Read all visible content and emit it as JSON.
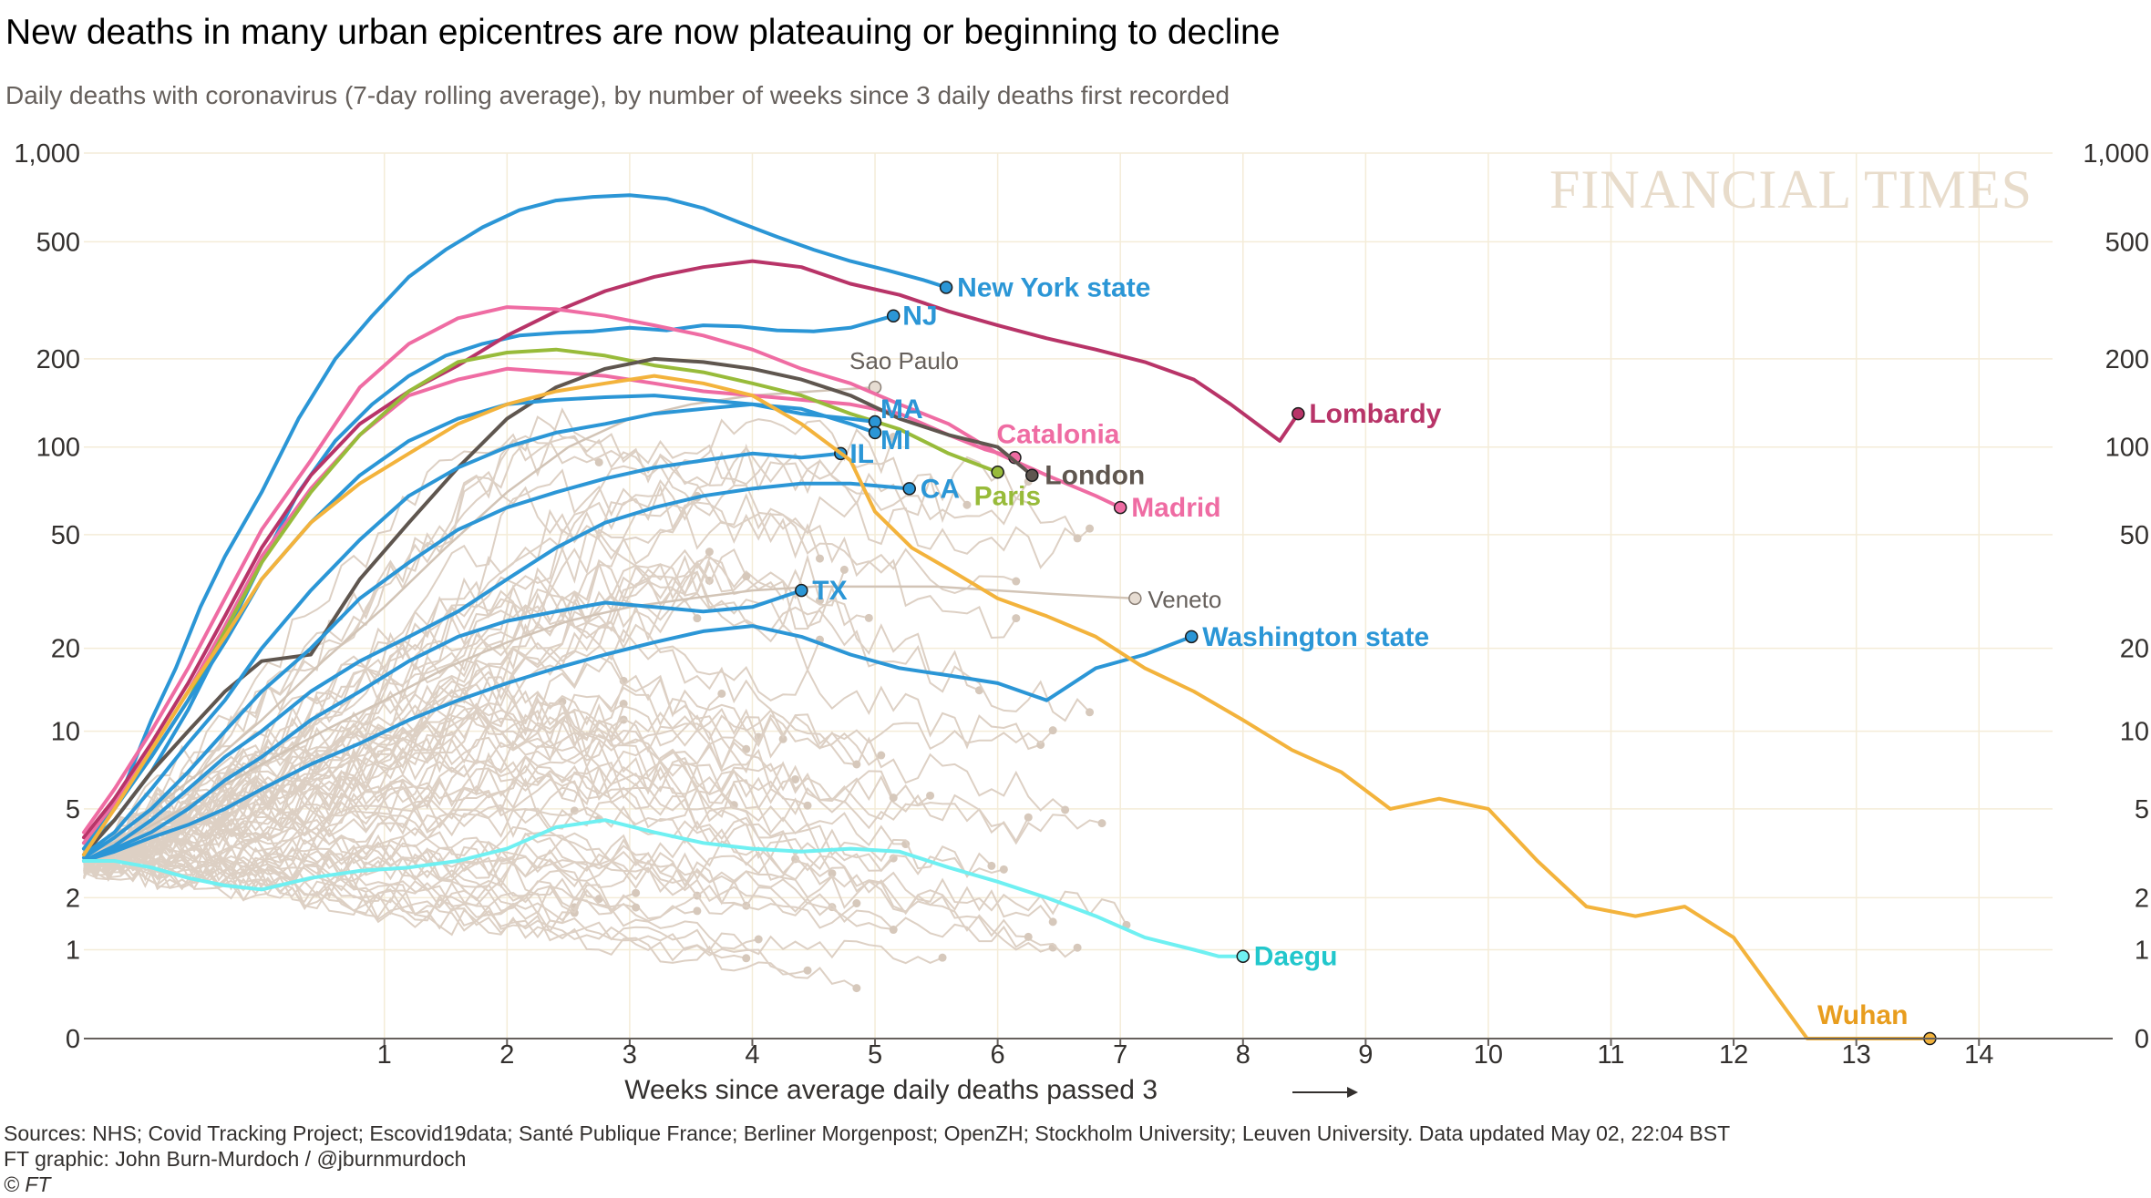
{
  "title": "New deaths in many urban epicentres are now plateauing or beginning to decline",
  "subtitle": "Daily deaths with coronavirus (7-day rolling average), by number of weeks since 3 daily deaths first recorded",
  "watermark": "FINANCIAL TIMES",
  "sources": "Sources: NHS; Covid Tracking Project; Escovid19data; Santé Publique France; Berliner Morgenpost; OpenZH; Stockholm University; Leuven University. Data updated May 02, 22:04 BST",
  "credit": "FT graphic: John Burn-Murdoch / @jburnmurdoch",
  "copyright": "© FT",
  "chart_data": {
    "type": "line",
    "title": "New deaths in many urban epicentres are now plateauing or beginning to decline",
    "subtitle": "Daily deaths with coronavirus (7-day rolling average), by number of weeks since 3 daily deaths first recorded",
    "xlabel": "Weeks since average daily deaths passed 3",
    "ylabel": "",
    "xlim": [
      -1.45,
      14.6
    ],
    "y_scale": "symlog",
    "ylim": [
      0,
      1000
    ],
    "grid": true,
    "legend": "none (direct labels)",
    "x_ticks": [
      1,
      2,
      3,
      4,
      5,
      6,
      7,
      8,
      9,
      10,
      11,
      12,
      13,
      14
    ],
    "x_tick_labels": [
      "1",
      "2",
      "3",
      "4",
      "5",
      "6",
      "7",
      "8",
      "9",
      "10",
      "11",
      "12",
      "13",
      "14"
    ],
    "y_ticks": [
      0,
      1,
      2,
      5,
      10,
      20,
      50,
      100,
      200,
      500,
      1000
    ],
    "y_tick_labels": [
      "0",
      "1",
      "2",
      "5",
      "10",
      "20",
      "50",
      "100",
      "200",
      "500",
      "1,000"
    ],
    "colors": {
      "us": "#2b96d6",
      "lombardy": "#b83468",
      "madrid": "#ef6ca3",
      "paris": "#98bb3a",
      "london": "#5f564f",
      "wuhan": "#f3b33c",
      "daegu": "#6ff0f2",
      "background_lines": "#ddd0c4",
      "background_dots": "#d6c8bb",
      "grid": "#f4ecd8"
    },
    "series": [
      {
        "name": "New York state",
        "color": "#2b96d6",
        "x": [
          -1.45,
          -1.3,
          -1.1,
          -0.9,
          -0.7,
          -0.5,
          -0.3,
          0,
          0.3,
          0.6,
          0.9,
          1.2,
          1.5,
          1.8,
          2.1,
          2.4,
          2.7,
          3.0,
          3.3,
          3.6,
          3.9,
          4.2,
          4.5,
          4.8,
          5.1,
          5.4,
          5.58
        ],
        "y": [
          3.6,
          4.5,
          6.5,
          11,
          17,
          28,
          42,
          70,
          125,
          200,
          280,
          380,
          470,
          560,
          640,
          690,
          710,
          720,
          700,
          650,
          580,
          520,
          470,
          430,
          400,
          370,
          350
        ]
      },
      {
        "name": "NJ",
        "color": "#2b96d6",
        "x": [
          -1.45,
          -1.2,
          -0.9,
          -0.6,
          -0.3,
          0,
          0.3,
          0.6,
          0.9,
          1.2,
          1.5,
          1.8,
          2.1,
          2.4,
          2.7,
          3.0,
          3.3,
          3.6,
          3.9,
          4.2,
          4.5,
          4.8,
          5.15
        ],
        "y": [
          3.4,
          4.5,
          7,
          12,
          22,
          40,
          70,
          105,
          140,
          175,
          205,
          225,
          240,
          245,
          248,
          255,
          250,
          260,
          258,
          250,
          248,
          255,
          280
        ]
      },
      {
        "name": "Lombardy",
        "color": "#b83468",
        "x": [
          -1.45,
          -1.2,
          -0.9,
          -0.6,
          -0.3,
          0,
          0.4,
          0.8,
          1.2,
          1.6,
          2.0,
          2.4,
          2.8,
          3.2,
          3.6,
          4.0,
          4.4,
          4.8,
          5.2,
          5.6,
          6.0,
          6.4,
          6.8,
          7.2,
          7.6,
          7.9,
          8.3,
          8.45
        ],
        "y": [
          3.8,
          5.5,
          9,
          15,
          26,
          45,
          80,
          120,
          155,
          190,
          240,
          290,
          340,
          380,
          410,
          430,
          410,
          360,
          330,
          290,
          260,
          235,
          215,
          195,
          170,
          140,
          105,
          130
        ]
      },
      {
        "name": "Madrid",
        "color": "#ef6ca3",
        "x": [
          -1.45,
          -1.2,
          -0.9,
          -0.6,
          -0.3,
          0,
          0.4,
          0.8,
          1.2,
          1.6,
          2.0,
          2.4,
          2.8,
          3.2,
          3.6,
          4.0,
          4.4,
          4.8,
          5.2,
          5.6,
          6.0,
          6.4,
          6.8,
          7.0
        ],
        "y": [
          4,
          6,
          10,
          17,
          30,
          52,
          90,
          160,
          225,
          275,
          300,
          295,
          280,
          260,
          240,
          215,
          185,
          165,
          140,
          120,
          95,
          80,
          68,
          62
        ]
      },
      {
        "name": "Catalonia",
        "color": "#ef6ca3",
        "x": [
          -1.45,
          -1.2,
          -0.9,
          -0.6,
          -0.3,
          0,
          0.4,
          0.8,
          1.2,
          1.6,
          2.0,
          2.4,
          2.8,
          3.2,
          3.6,
          4.0,
          4.4,
          4.8,
          5.2,
          5.6,
          5.9,
          6.14
        ],
        "y": [
          3.6,
          5.2,
          8.5,
          14,
          24,
          42,
          72,
          110,
          150,
          170,
          185,
          180,
          175,
          165,
          155,
          150,
          145,
          140,
          130,
          110,
          98,
          92
        ]
      },
      {
        "name": "Paris",
        "color": "#98bb3a",
        "x": [
          -1.45,
          -1.2,
          -0.9,
          -0.6,
          -0.3,
          0,
          0.4,
          0.8,
          1.2,
          1.6,
          2.0,
          2.4,
          2.8,
          3.2,
          3.6,
          4.0,
          4.4,
          4.8,
          5.2,
          5.6,
          6.0
        ],
        "y": [
          3.4,
          5,
          8,
          13,
          23,
          40,
          70,
          110,
          155,
          195,
          210,
          215,
          205,
          190,
          180,
          165,
          150,
          130,
          115,
          95,
          82
        ]
      },
      {
        "name": "London",
        "color": "#5f564f",
        "x": [
          -1.45,
          -1.2,
          -0.9,
          -0.6,
          -0.3,
          0,
          0.4,
          0.8,
          1.2,
          1.6,
          2.0,
          2.4,
          2.8,
          3.2,
          3.6,
          4.0,
          4.4,
          4.8,
          5.2,
          5.6,
          6.0,
          6.28
        ],
        "y": [
          3.2,
          4.5,
          7,
          10,
          14,
          18,
          19,
          35,
          55,
          85,
          125,
          160,
          185,
          200,
          195,
          185,
          170,
          150,
          125,
          110,
          100,
          80
        ]
      },
      {
        "name": "Sao Paulo",
        "color": "#d6c8bb",
        "x": [
          -1.45,
          -1.0,
          -0.5,
          0,
          0.5,
          1.0,
          1.5,
          2.0,
          2.5,
          3.0,
          3.5,
          4.0,
          4.5,
          5.0
        ],
        "y": [
          3.3,
          4.5,
          7,
          11,
          18,
          28,
          45,
          70,
          100,
          125,
          140,
          150,
          155,
          160
        ]
      },
      {
        "name": "MA",
        "color": "#2b96d6",
        "x": [
          -1.45,
          -1.2,
          -0.9,
          -0.6,
          -0.3,
          0,
          0.4,
          0.8,
          1.2,
          1.6,
          2.0,
          2.4,
          2.8,
          3.2,
          3.6,
          4.0,
          4.4,
          4.8,
          5.0
        ],
        "y": [
          3.2,
          4,
          6,
          9,
          13,
          20,
          32,
          48,
          68,
          85,
          100,
          112,
          120,
          130,
          135,
          140,
          130,
          125,
          122
        ]
      },
      {
        "name": "MI",
        "color": "#2b96d6",
        "x": [
          -1.45,
          -1.2,
          -0.9,
          -0.6,
          -0.3,
          0,
          0.4,
          0.8,
          1.2,
          1.6,
          2.0,
          2.4,
          2.8,
          3.2,
          3.6,
          4.0,
          4.4,
          4.8,
          5.0
        ],
        "y": [
          3.4,
          5,
          8,
          13,
          21,
          35,
          55,
          80,
          105,
          125,
          140,
          145,
          148,
          150,
          145,
          140,
          135,
          120,
          112
        ]
      },
      {
        "name": "IL",
        "color": "#2b96d6",
        "x": [
          -1.45,
          -1.2,
          -0.9,
          -0.6,
          -0.3,
          0,
          0.4,
          0.8,
          1.2,
          1.6,
          2.0,
          2.4,
          2.8,
          3.2,
          3.6,
          4.0,
          4.4,
          4.72
        ],
        "y": [
          3.1,
          3.8,
          5,
          7,
          10,
          14,
          20,
          30,
          40,
          52,
          62,
          70,
          78,
          85,
          90,
          95,
          92,
          95
        ]
      },
      {
        "name": "CA",
        "color": "#2b96d6",
        "x": [
          -1.45,
          -1.2,
          -0.9,
          -0.6,
          -0.3,
          0,
          0.4,
          0.8,
          1.2,
          1.6,
          2.0,
          2.4,
          2.8,
          3.2,
          3.6,
          4.0,
          4.4,
          4.8,
          5.28
        ],
        "y": [
          3,
          3.5,
          4.5,
          6,
          8,
          10,
          14,
          18,
          22,
          27,
          35,
          45,
          55,
          62,
          68,
          72,
          75,
          75,
          72
        ]
      },
      {
        "name": "TX",
        "color": "#2b96d6",
        "x": [
          -1.45,
          -1.2,
          -0.9,
          -0.6,
          -0.3,
          0,
          0.4,
          0.8,
          1.2,
          1.6,
          2.0,
          2.4,
          2.8,
          3.2,
          3.6,
          4.0,
          4.4
        ],
        "y": [
          3,
          3.4,
          4,
          5,
          6.5,
          8,
          11,
          14,
          18,
          22,
          25,
          27,
          29,
          28,
          27,
          28,
          32
        ]
      },
      {
        "name": "Washington state",
        "color": "#2b96d6",
        "x": [
          -1.45,
          -1.2,
          -0.9,
          -0.6,
          -0.3,
          0,
          0.4,
          0.8,
          1.2,
          1.6,
          2.0,
          2.4,
          2.8,
          3.2,
          3.6,
          4.0,
          4.4,
          4.8,
          5.2,
          5.6,
          6.0,
          6.4,
          6.8,
          7.2,
          7.58
        ],
        "y": [
          3.0,
          3.3,
          3.8,
          4.3,
          5,
          6,
          7.5,
          9,
          11,
          13,
          15,
          17,
          19,
          21,
          23,
          24,
          22,
          19,
          17,
          16,
          15,
          13,
          17,
          19,
          22
        ]
      },
      {
        "name": "Veneto",
        "color": "#d6c8bb",
        "x": [
          -1.45,
          -1.0,
          -0.5,
          0,
          0.5,
          1.0,
          1.5,
          2.0,
          2.5,
          3.0,
          3.5,
          4.0,
          4.5,
          5.0,
          5.5,
          6.0,
          6.5,
          7.12
        ],
        "y": [
          3.2,
          4,
          5.5,
          7.5,
          10,
          13,
          17,
          21,
          25,
          28,
          30,
          32,
          33,
          33,
          33,
          32,
          31,
          30
        ]
      },
      {
        "name": "Wuhan",
        "color": "#f3b33c",
        "x": [
          -1.45,
          -1.2,
          -0.9,
          -0.6,
          -0.3,
          0,
          0.4,
          0.8,
          1.2,
          1.6,
          2.0,
          2.4,
          2.8,
          3.2,
          3.6,
          4.0,
          4.4,
          4.8,
          5.0,
          5.3,
          5.6,
          6.0,
          6.4,
          6.8,
          7.2,
          7.6,
          8.0,
          8.4,
          8.8,
          9.2,
          9.6,
          10.0,
          10.4,
          10.8,
          11.2,
          11.6,
          12.0,
          12.4,
          12.6,
          13.0,
          13.6
        ],
        "y": [
          3.2,
          5,
          8.5,
          14,
          22,
          35,
          55,
          75,
          95,
          120,
          140,
          155,
          165,
          175,
          165,
          150,
          120,
          90,
          60,
          45,
          38,
          30,
          26,
          22,
          17,
          14,
          11,
          8.5,
          7,
          5,
          5.5,
          5,
          3,
          1.8,
          1.6,
          1.8,
          1.2,
          0.3,
          0,
          0,
          0
        ]
      },
      {
        "name": "Daegu",
        "color": "#6ff0f2",
        "x": [
          -1.45,
          -1.2,
          -0.9,
          -0.6,
          -0.3,
          0,
          0.4,
          0.8,
          1.2,
          1.6,
          2.0,
          2.4,
          2.8,
          3.2,
          3.6,
          4.0,
          4.4,
          4.8,
          5.2,
          5.6,
          6.0,
          6.4,
          6.8,
          7.2,
          7.6,
          7.8,
          8.0
        ],
        "y": [
          3,
          3,
          2.8,
          2.5,
          2.3,
          2.2,
          2.5,
          2.7,
          2.8,
          3,
          3.4,
          4.2,
          4.5,
          4.0,
          3.6,
          3.4,
          3.3,
          3.4,
          3.3,
          2.8,
          2.4,
          2.0,
          1.6,
          1.2,
          1.0,
          0.9,
          0.9
        ]
      }
    ],
    "labels": [
      {
        "series": "New York state",
        "text": "New York state"
      },
      {
        "series": "NJ",
        "text": "NJ"
      },
      {
        "series": "Lombardy",
        "text": "Lombardy"
      },
      {
        "series": "Sao Paulo",
        "text": "Sao Paulo"
      },
      {
        "series": "MA",
        "text": "MA"
      },
      {
        "series": "MI",
        "text": "MI"
      },
      {
        "series": "IL",
        "text": "IL"
      },
      {
        "series": "CA",
        "text": "CA"
      },
      {
        "series": "Catalonia",
        "text": "Catalonia"
      },
      {
        "series": "London",
        "text": "London"
      },
      {
        "series": "Paris",
        "text": "Paris"
      },
      {
        "series": "Madrid",
        "text": "Madrid"
      },
      {
        "series": "Veneto",
        "text": "Veneto"
      },
      {
        "series": "TX",
        "text": "TX"
      },
      {
        "series": "Washington state",
        "text": "Washington state"
      },
      {
        "series": "Daegu",
        "text": "Daegu"
      },
      {
        "series": "Wuhan",
        "text": "Wuhan"
      }
    ]
  }
}
